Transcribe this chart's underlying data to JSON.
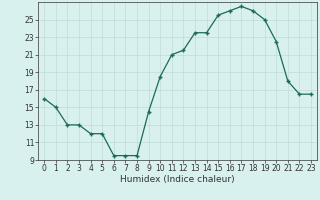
{
  "x": [
    0,
    1,
    2,
    3,
    4,
    5,
    6,
    7,
    8,
    9,
    10,
    11,
    12,
    13,
    14,
    15,
    16,
    17,
    18,
    19,
    20,
    21,
    22,
    23
  ],
  "y": [
    16,
    15,
    13,
    13,
    12,
    12,
    9.5,
    9.5,
    9.5,
    14.5,
    18.5,
    21,
    21.5,
    23.5,
    23.5,
    25.5,
    26,
    26.5,
    26,
    25,
    22.5,
    18,
    16.5,
    16.5
  ],
  "xlabel": "Humidex (Indice chaleur)",
  "ylim": [
    9,
    27
  ],
  "xlim": [
    -0.5,
    23.5
  ],
  "yticks": [
    9,
    11,
    13,
    15,
    17,
    19,
    21,
    23,
    25
  ],
  "xticks": [
    0,
    1,
    2,
    3,
    4,
    5,
    6,
    7,
    8,
    9,
    10,
    11,
    12,
    13,
    14,
    15,
    16,
    17,
    18,
    19,
    20,
    21,
    22,
    23
  ],
  "line_color": "#1a6b5a",
  "marker": "+",
  "marker_color": "#1a6b5a",
  "bg_color": "#d8f0ee",
  "grid_color": "#c0dcd8",
  "axes_color": "#333333",
  "tick_fontsize": 5.5,
  "xlabel_fontsize": 6.5
}
